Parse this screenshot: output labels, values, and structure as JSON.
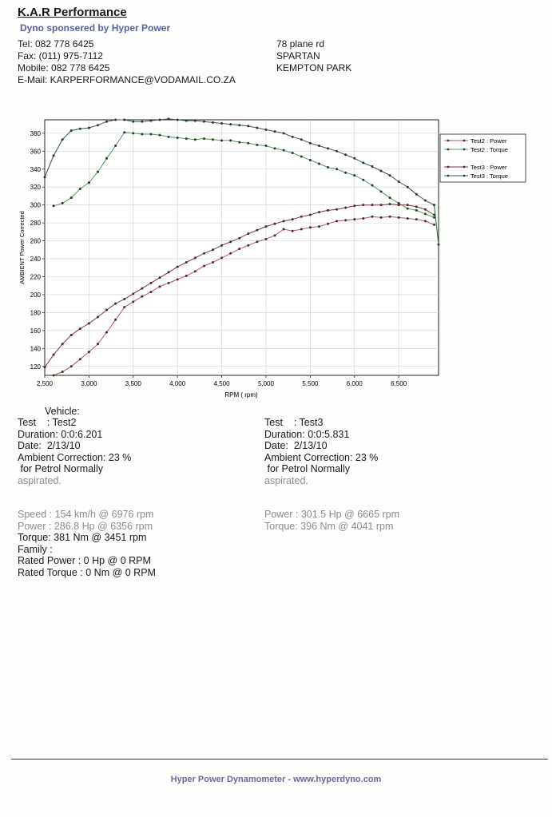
{
  "header": {
    "company": "K.A.R Performance",
    "sponsor": "Dyno sponsered by Hyper Power",
    "tel": "Tel: 082 778 6425",
    "fax": "Fax: (011) 975-7112",
    "mobile": "Mobile: 082 778 6425",
    "email": "E-Mail: KARPERFORMANCE@VODAMAIL.CO.ZA",
    "address_1": "78 plane rd",
    "address_2": "SPARTAN",
    "address_3": "KEMPTON PARK"
  },
  "chart_data": {
    "type": "line",
    "xlabel": "RPM ( rpm)",
    "ylabel": "AMBIENT Power Corrected",
    "xlim": [
      2500,
      6950
    ],
    "ylim": [
      110,
      395
    ],
    "x_ticks": [
      2500,
      3000,
      3500,
      4000,
      4500,
      5000,
      5500,
      6000,
      6500
    ],
    "x_tick_labels": [
      "2,500",
      "3,000",
      "3,500",
      "4,000",
      "4,500",
      "5,000",
      "5,500",
      "6,000",
      "6,500"
    ],
    "y_ticks": [
      120,
      140,
      160,
      180,
      200,
      220,
      240,
      260,
      280,
      300,
      320,
      340,
      360,
      380
    ],
    "grid": true,
    "legend_position": "right",
    "series": [
      {
        "name": "Test2 : Power",
        "color": "#c0505a",
        "x": [
          2600,
          2700,
          2800,
          2900,
          3000,
          3100,
          3200,
          3300,
          3400,
          3500,
          3600,
          3700,
          3800,
          3900,
          4000,
          4100,
          4200,
          4300,
          4400,
          4500,
          4600,
          4700,
          4800,
          4900,
          5000,
          5100,
          5200,
          5300,
          5400,
          5500,
          5600,
          5700,
          5800,
          5900,
          6000,
          6100,
          6200,
          6300,
          6400,
          6500,
          6600,
          6700,
          6800,
          6900
        ],
        "y": [
          110,
          114,
          120,
          128,
          136,
          145,
          158,
          172,
          186,
          192,
          198,
          203,
          209,
          213,
          217,
          221,
          226,
          232,
          236,
          241,
          246,
          251,
          255,
          259,
          262,
          266,
          273,
          271,
          273,
          275,
          276,
          279,
          282,
          283,
          284,
          285,
          287,
          286,
          287,
          286,
          285,
          284,
          282,
          278
        ]
      },
      {
        "name": "Test2 : Torque",
        "color": "#4f9f5a",
        "x": [
          2600,
          2700,
          2800,
          2900,
          3000,
          3100,
          3200,
          3300,
          3400,
          3500,
          3600,
          3700,
          3800,
          3900,
          4000,
          4100,
          4200,
          4300,
          4400,
          4500,
          4600,
          4700,
          4800,
          4900,
          5000,
          5100,
          5200,
          5300,
          5400,
          5500,
          5600,
          5700,
          5800,
          5900,
          6000,
          6100,
          6200,
          6300,
          6400,
          6500,
          6600,
          6700,
          6800,
          6900
        ],
        "y": [
          299,
          302,
          308,
          318,
          325,
          337,
          352,
          366,
          381,
          380,
          379,
          379,
          378,
          376,
          375,
          374,
          373,
          374,
          373,
          372,
          372,
          370,
          369,
          367,
          366,
          363,
          361,
          358,
          354,
          350,
          346,
          342,
          340,
          336,
          333,
          328,
          322,
          315,
          308,
          302,
          296,
          294,
          290,
          286
        ]
      },
      {
        "name": "Test3 : Power",
        "color": "#8a2f38",
        "x": [
          2500,
          2600,
          2700,
          2800,
          2900,
          3000,
          3100,
          3200,
          3300,
          3400,
          3500,
          3600,
          3700,
          3800,
          3900,
          4000,
          4100,
          4200,
          4300,
          4400,
          4500,
          4600,
          4700,
          4800,
          4900,
          5000,
          5100,
          5200,
          5300,
          5400,
          5500,
          5600,
          5700,
          5800,
          5900,
          6000,
          6100,
          6200,
          6300,
          6400,
          6500,
          6600,
          6700,
          6800,
          6900
        ],
        "y": [
          119,
          133,
          145,
          155,
          162,
          168,
          175,
          183,
          190,
          195,
          201,
          207,
          213,
          219,
          225,
          231,
          236,
          241,
          246,
          250,
          255,
          259,
          263,
          268,
          272,
          276,
          279,
          282,
          284,
          287,
          289,
          292,
          294,
          295,
          297,
          299,
          300,
          300,
          300,
          301,
          300,
          300,
          298,
          295,
          289
        ]
      },
      {
        "name": "Test3 : Torque",
        "color": "#2f5f3a",
        "x": [
          2500,
          2600,
          2700,
          2800,
          2900,
          3000,
          3100,
          3200,
          3300,
          3400,
          3500,
          3600,
          3700,
          3800,
          3900,
          4000,
          4100,
          4200,
          4300,
          4400,
          4500,
          4600,
          4700,
          4800,
          4900,
          5000,
          5100,
          5200,
          5300,
          5400,
          5500,
          5600,
          5700,
          5800,
          5900,
          6000,
          6100,
          6200,
          6300,
          6400,
          6500,
          6600,
          6700,
          6800,
          6900,
          6950
        ],
        "y": [
          331,
          355,
          373,
          383,
          385,
          386,
          389,
          393,
          395,
          395,
          393,
          393,
          394,
          395,
          396,
          395,
          394,
          394,
          393,
          392,
          391,
          390,
          389,
          388,
          386,
          384,
          382,
          380,
          376,
          373,
          369,
          366,
          363,
          360,
          356,
          352,
          347,
          343,
          338,
          333,
          326,
          320,
          312,
          305,
          300,
          256
        ]
      }
    ]
  },
  "details": {
    "vehicle": "Vehicle:",
    "test2": {
      "test": "Test    : Test2",
      "duration": "Duration: 0:0:6.201",
      "date": "Date:  2/13/10",
      "ambient": "Ambient Correction: 23 %",
      "note_1": " for Petrol Normally",
      "note_2": "aspirated.",
      "speed": "Speed : 154 km/h @ 6976 rpm",
      "power": "Power : 286.8 Hp @ 6356 rpm",
      "torque": "Torque: 381 Nm @ 3451 rpm",
      "family": "Family :",
      "rated_power": "Rated Power : 0 Hp @ 0 RPM",
      "rated_torque": "Rated Torque : 0 Nm @ 0 RPM"
    },
    "test3": {
      "test": "Test    : Test3",
      "duration": "Duration: 0:0:5.831",
      "date": "Date:  2/13/10",
      "ambient": "Ambient Correction: 23 %",
      "note_1": " for Petrol Normally",
      "note_2": "aspirated.",
      "power": "Power : 301.5 Hp @ 6665 rpm",
      "torque": "Torque: 396 Nm @ 4041 rpm"
    }
  },
  "footer": {
    "text": "Hyper Power Dynamometer  -  www.hyperdyno.com"
  }
}
